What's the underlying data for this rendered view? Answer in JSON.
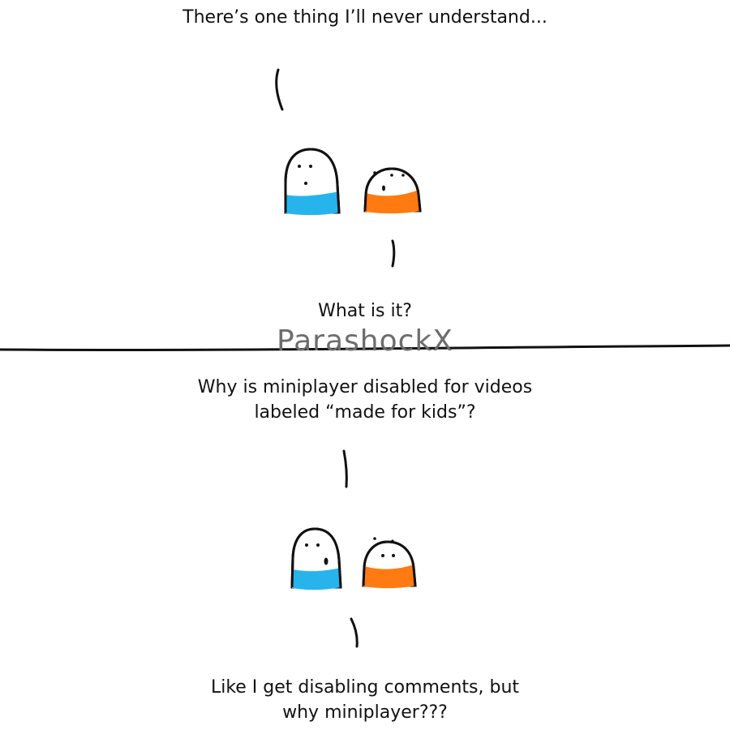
{
  "comic": {
    "panel_1": {
      "caption_top": "There’s one thing I’ll never understand...",
      "caption_bottom": "What is it?"
    },
    "panel_2": {
      "caption_top": "Why is miniplayer disabled for videos\nlabeled “made for kids”?",
      "caption_bottom": "Like I get disabling comments, but\nwhy miniplayer???"
    },
    "watermark": "ParashockX",
    "colors": {
      "blue_character": "#27b4ec",
      "orange_character": "#ff7a10",
      "outline": "#111111",
      "watermark": "#6d6d6d"
    }
  }
}
